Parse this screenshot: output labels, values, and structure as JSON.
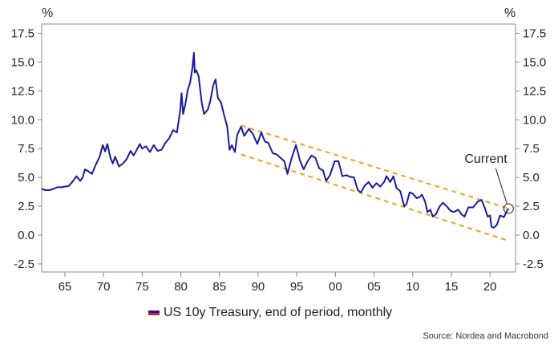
{
  "chart_data": {
    "type": "line",
    "title": "",
    "y_unit_left": "%",
    "y_unit_right": "%",
    "xlim": [
      1962,
      2023.3
    ],
    "ylim": [
      -3.2,
      18.3
    ],
    "y_ticks": [
      -2.5,
      0.0,
      2.5,
      5.0,
      7.5,
      10.0,
      12.5,
      15.0,
      17.5
    ],
    "y_tick_labels": [
      "-2.5",
      "0.0",
      "2.5",
      "5.0",
      "7.5",
      "10.0",
      "12.5",
      "15.0",
      "17.5"
    ],
    "x_ticks": [
      1965,
      1970,
      1975,
      1980,
      1985,
      1990,
      1995,
      2000,
      2005,
      2010,
      2015,
      2020
    ],
    "x_tick_labels": [
      "65",
      "70",
      "75",
      "80",
      "85",
      "90",
      "95",
      "00",
      "05",
      "10",
      "15",
      "20"
    ],
    "series": [
      {
        "name": "US 10y Treasury, end of period, monthly",
        "color": "#1a1a99",
        "x": [
          1962.0,
          1962.5,
          1963.0,
          1963.5,
          1964.0,
          1964.5,
          1965.0,
          1965.5,
          1966.0,
          1966.5,
          1967.0,
          1967.3,
          1967.6,
          1968.0,
          1968.5,
          1969.0,
          1969.5,
          1969.9,
          1970.2,
          1970.5,
          1970.9,
          1971.2,
          1971.5,
          1972.0,
          1972.5,
          1973.0,
          1973.5,
          1973.9,
          1974.3,
          1974.7,
          1975.0,
          1975.5,
          1976.0,
          1976.5,
          1977.0,
          1977.5,
          1978.0,
          1978.5,
          1979.0,
          1979.5,
          1979.9,
          1980.1,
          1980.3,
          1980.6,
          1980.9,
          1981.2,
          1981.5,
          1981.7,
          1981.8,
          1982.0,
          1982.3,
          1982.7,
          1983.0,
          1983.5,
          1983.8,
          1984.2,
          1984.5,
          1984.8,
          1985.2,
          1985.6,
          1986.0,
          1986.3,
          1986.6,
          1987.0,
          1987.3,
          1987.8,
          1988.2,
          1988.8,
          1989.3,
          1989.9,
          1990.4,
          1990.9,
          1991.3,
          1991.9,
          1992.4,
          1992.9,
          1993.4,
          1993.8,
          1994.3,
          1994.9,
          1995.4,
          1995.9,
          1996.4,
          1996.9,
          1997.4,
          1997.9,
          1998.4,
          1998.8,
          1999.3,
          1999.9,
          2000.4,
          2000.9,
          2001.4,
          2001.9,
          2002.4,
          2002.9,
          2003.3,
          2003.8,
          2004.3,
          2004.8,
          2005.3,
          2005.8,
          2006.3,
          2006.6,
          2007.1,
          2007.5,
          2007.9,
          2008.4,
          2008.9,
          2009.2,
          2009.6,
          2010.0,
          2010.5,
          2010.9,
          2011.2,
          2011.6,
          2011.9,
          2012.3,
          2012.6,
          2013.0,
          2013.5,
          2013.9,
          2014.4,
          2014.9,
          2015.3,
          2015.9,
          2016.3,
          2016.7,
          2017.2,
          2017.8,
          2018.4,
          2018.9,
          2019.3,
          2019.7,
          2020.0,
          2020.2,
          2020.5,
          2020.9,
          2021.3,
          2021.8,
          2022.2,
          2022.4
        ],
        "values": [
          4.0,
          3.9,
          3.9,
          4.0,
          4.15,
          4.15,
          4.2,
          4.25,
          4.65,
          5.1,
          4.7,
          5.0,
          5.7,
          5.55,
          5.3,
          6.1,
          6.8,
          7.8,
          7.25,
          7.9,
          6.7,
          6.2,
          6.8,
          5.95,
          6.2,
          6.6,
          7.3,
          6.9,
          7.4,
          7.9,
          7.5,
          7.7,
          7.2,
          7.8,
          7.3,
          7.4,
          8.0,
          8.4,
          9.1,
          8.9,
          10.7,
          12.3,
          10.5,
          11.4,
          12.6,
          13.2,
          14.5,
          15.8,
          14.1,
          14.3,
          13.8,
          11.5,
          10.5,
          10.9,
          11.6,
          13.0,
          13.5,
          11.9,
          11.5,
          10.4,
          9.4,
          7.4,
          7.8,
          7.2,
          8.7,
          9.4,
          8.6,
          9.2,
          8.8,
          7.9,
          8.9,
          8.1,
          8.0,
          7.1,
          7.0,
          6.7,
          6.4,
          5.3,
          6.6,
          7.8,
          6.5,
          5.7,
          6.4,
          6.9,
          6.7,
          5.8,
          5.6,
          4.7,
          5.2,
          6.4,
          6.4,
          5.1,
          5.2,
          5.05,
          5.0,
          3.9,
          3.7,
          4.3,
          4.6,
          4.1,
          4.5,
          4.2,
          4.6,
          5.1,
          4.6,
          5.1,
          4.1,
          3.8,
          2.5,
          2.7,
          3.7,
          3.6,
          3.2,
          3.3,
          3.5,
          2.9,
          2.0,
          2.2,
          1.6,
          1.8,
          2.5,
          2.8,
          2.5,
          2.1,
          2.0,
          2.2,
          1.8,
          1.6,
          2.4,
          2.4,
          2.9,
          3.05,
          2.4,
          1.6,
          1.7,
          0.7,
          0.65,
          0.9,
          1.7,
          1.55,
          2.1,
          2.3
        ]
      }
    ],
    "channel": {
      "color": "#f0a020",
      "upper": {
        "x": [
          1987.8,
          2022.4
        ],
        "values": [
          9.5,
          2.3
        ]
      },
      "lower": {
        "x": [
          1987.8,
          2022.4
        ],
        "values": [
          7.0,
          -0.5
        ]
      }
    },
    "annotation": {
      "label": "Current",
      "x": 2022.4,
      "value": 2.3
    },
    "legend": {
      "label": "US 10y Treasury, end of period, monthly",
      "position": "bottom"
    },
    "source": "Source: Nordea and Macrobond"
  }
}
